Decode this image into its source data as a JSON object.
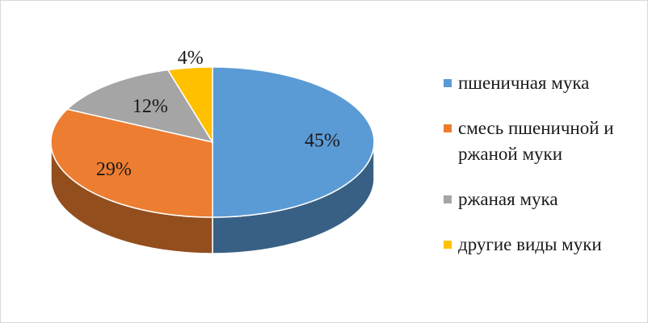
{
  "chart_data": {
    "type": "pie",
    "style": "3d",
    "categories": [
      "пшеничная мука",
      "смесь пшеничной и ржаной муки",
      "ржаная мука",
      "другие виды муки"
    ],
    "values": [
      45,
      29,
      12,
      4
    ],
    "value_labels": [
      "45%",
      "29%",
      "12%",
      "4%"
    ],
    "colors": [
      "#5b9bd5",
      "#ed7d31",
      "#a5a5a5",
      "#ffc000"
    ],
    "legend": "right"
  }
}
